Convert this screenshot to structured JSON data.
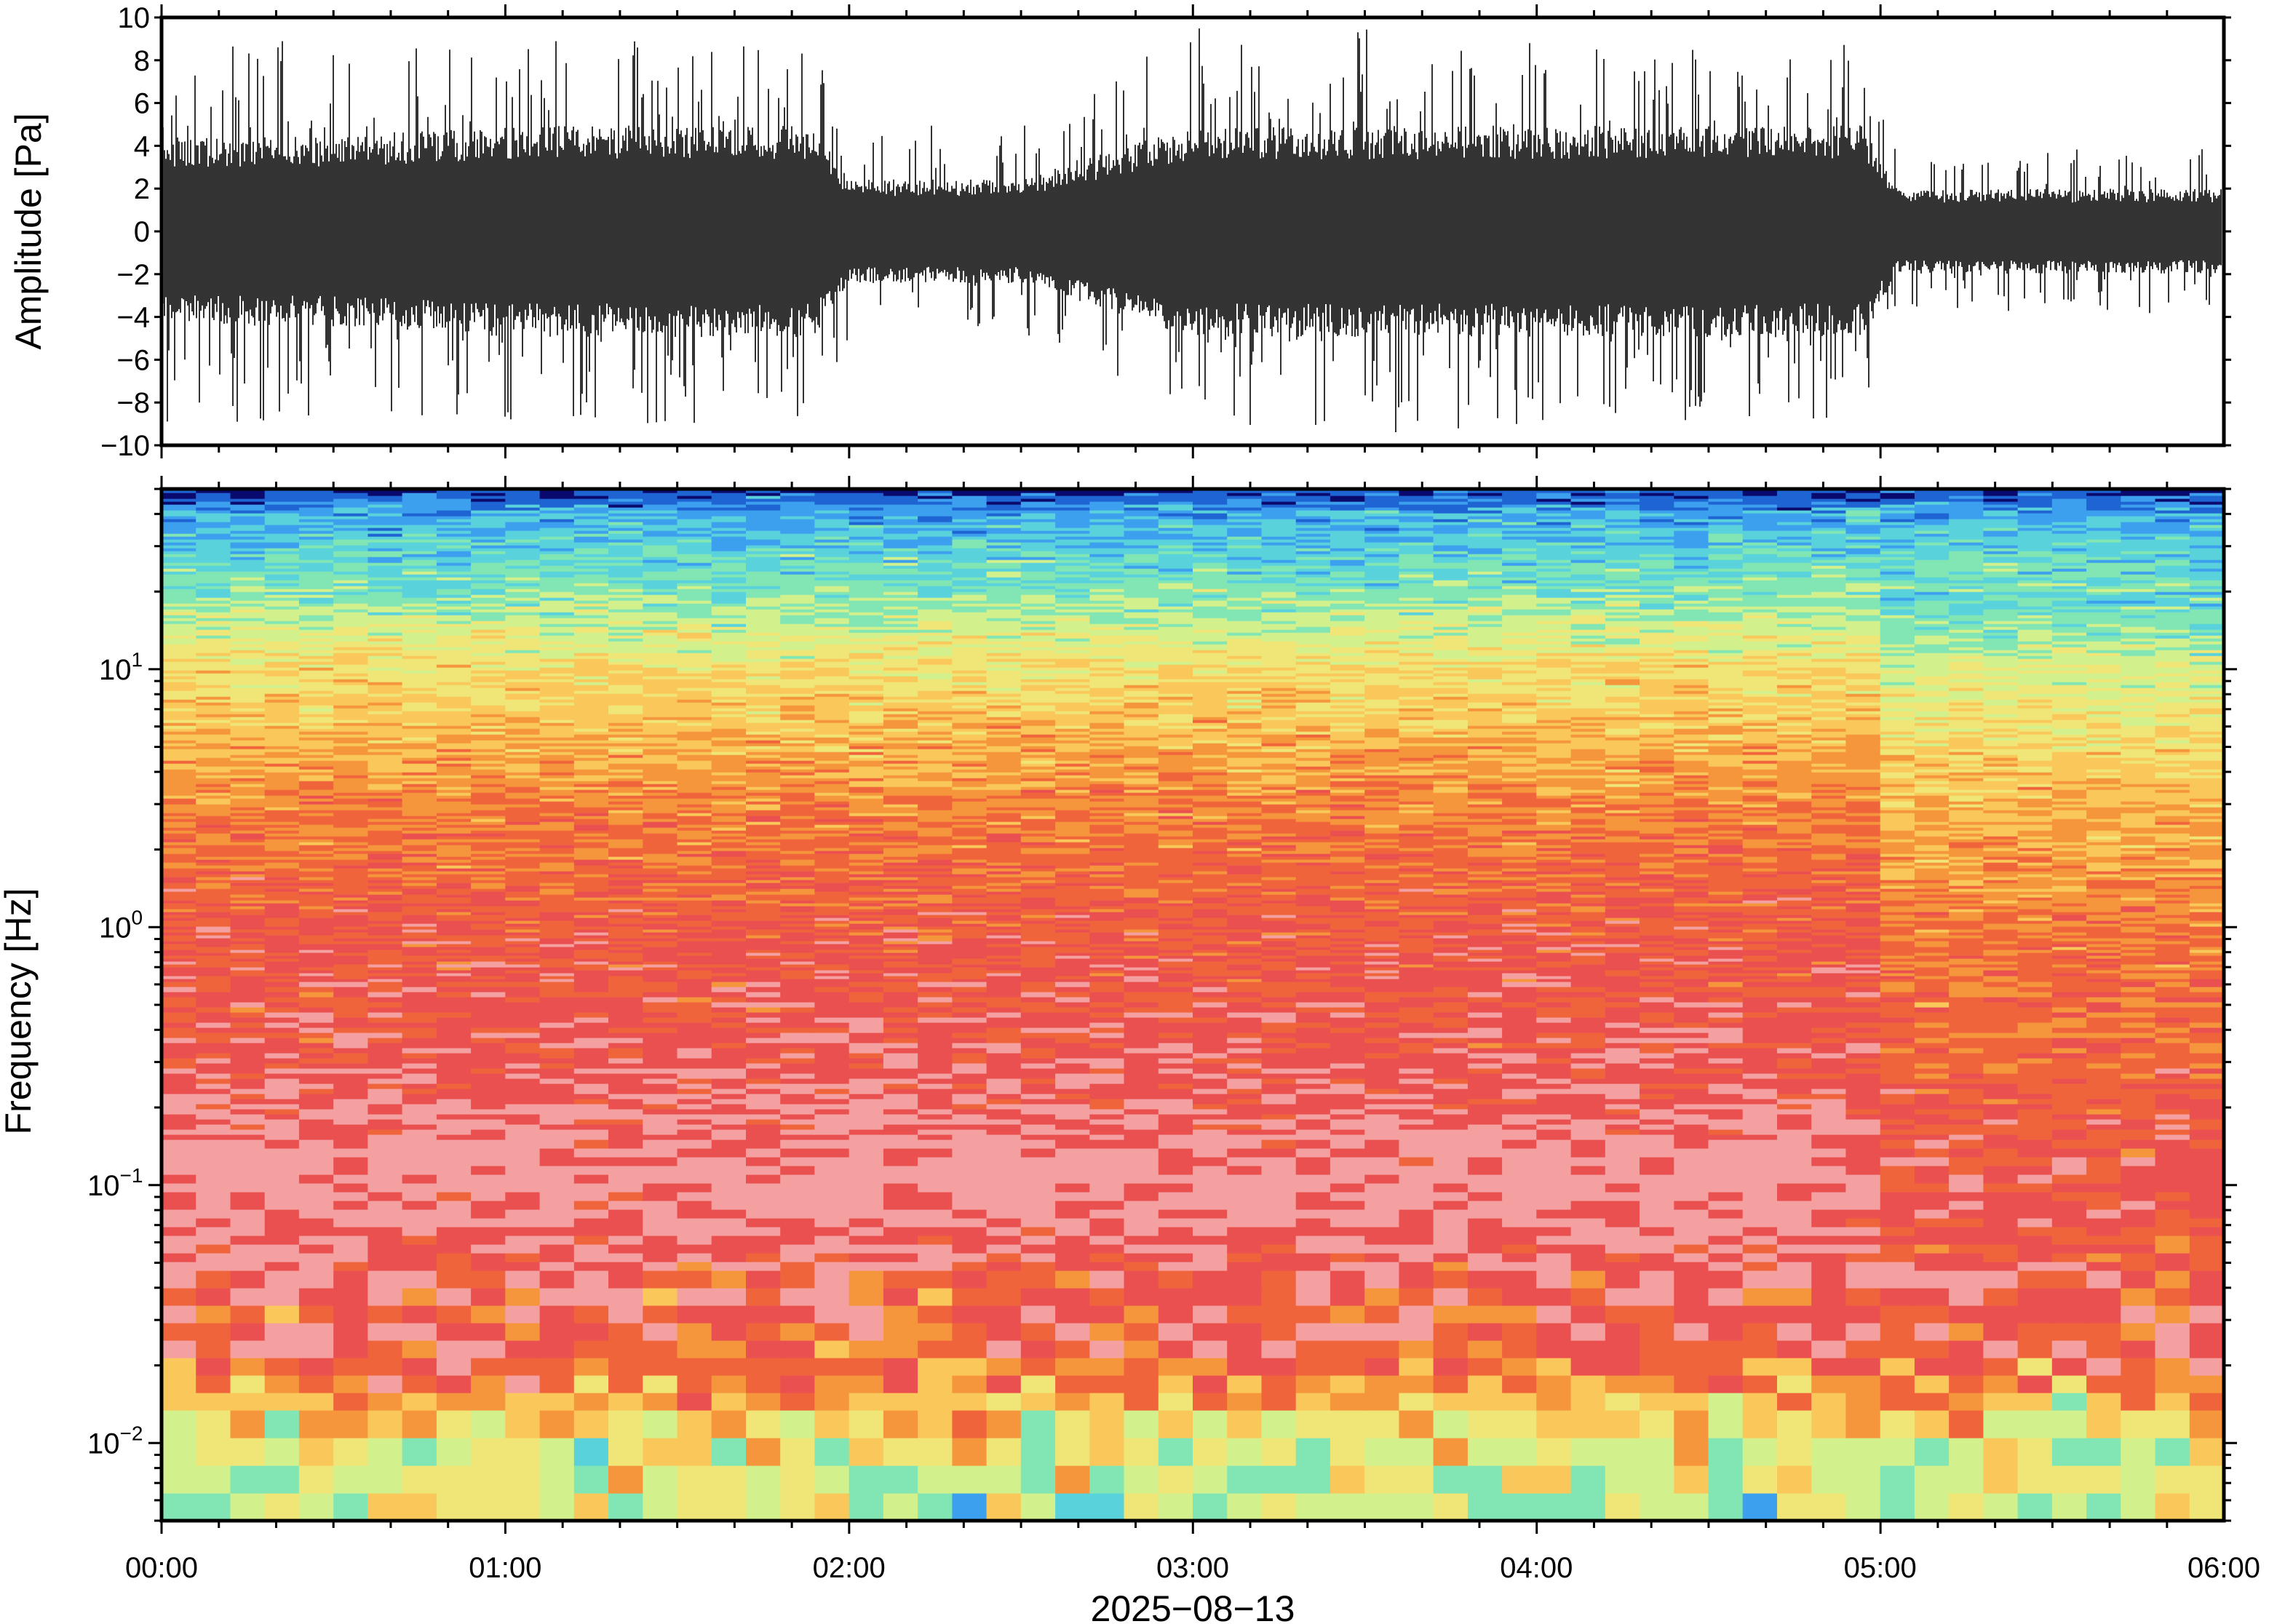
{
  "chart_data": [
    {
      "type": "line",
      "panel": "waveform",
      "ylabel": "Amplitude [Pa]",
      "ylim": [
        -10,
        10
      ],
      "yticks": [
        -10,
        -8,
        -6,
        -4,
        -2,
        0,
        2,
        4,
        6,
        8,
        10
      ],
      "ytick_labels": [
        "−10",
        "−8",
        "−6",
        "−4",
        "−2",
        "0",
        "2",
        "4",
        "6",
        "8",
        "10"
      ],
      "xlim_hours": [
        0,
        6
      ],
      "envelope": {
        "t_hours": [
          0,
          0.5,
          1.0,
          1.5,
          1.9,
          2.0,
          2.5,
          3.0,
          3.5,
          4.0,
          4.5,
          4.95,
          5.05,
          5.5,
          6.0
        ],
        "typical_abs_pa": [
          4,
          4,
          4.5,
          4.5,
          4.5,
          2.2,
          2.2,
          4.5,
          4.5,
          4.5,
          4.5,
          4.5,
          1.8,
          1.8,
          1.8
        ],
        "peak_abs_pa": [
          9,
          9,
          9,
          9,
          9,
          5,
          5,
          9.5,
          9.5,
          9,
          9,
          9,
          4,
          4,
          4
        ]
      }
    },
    {
      "type": "heatmap",
      "panel": "spectrogram",
      "ylabel": "Frequency [Hz]",
      "yscale": "log",
      "ylim_hz": [
        0.005,
        50
      ],
      "yticks_hz": [
        0.01,
        0.1,
        1,
        10
      ],
      "ytick_labels": [
        {
          "base": "10",
          "exp": "−2"
        },
        {
          "base": "10",
          "exp": "−1"
        },
        {
          "base": "10",
          "exp": "0"
        },
        {
          "base": "10",
          "exp": "1"
        }
      ],
      "xlim_hours": [
        0,
        6
      ],
      "colormap": [
        "#0a0a6e",
        "#1e64d2",
        "#3ca0ee",
        "#5ad2dc",
        "#82e6b4",
        "#d2f08c",
        "#f0e678",
        "#fac85a",
        "#f5963c",
        "#f0643c",
        "#eb5050",
        "#f5a0a0"
      ],
      "profile_freq_hz": [
        0.005,
        0.008,
        0.012,
        0.02,
        0.04,
        0.1,
        0.3,
        1,
        3,
        10,
        20,
        40,
        50
      ],
      "profile_level": [
        5.2,
        5.6,
        6.8,
        9.6,
        10.0,
        11.0,
        10.0,
        9.5,
        8.3,
        6.2,
        4.0,
        2.2,
        0.2
      ],
      "quiet_interval_hours": [
        5.05,
        6.0
      ]
    }
  ],
  "shared_x": {
    "tick_labels": [
      "00:00",
      "01:00",
      "02:00",
      "03:00",
      "04:00",
      "05:00",
      "06:00"
    ],
    "tick_hours": [
      0,
      1,
      2,
      3,
      4,
      5,
      6
    ],
    "minor_tick_step_hours": 0.1667,
    "date_label": "2025−08−13"
  }
}
